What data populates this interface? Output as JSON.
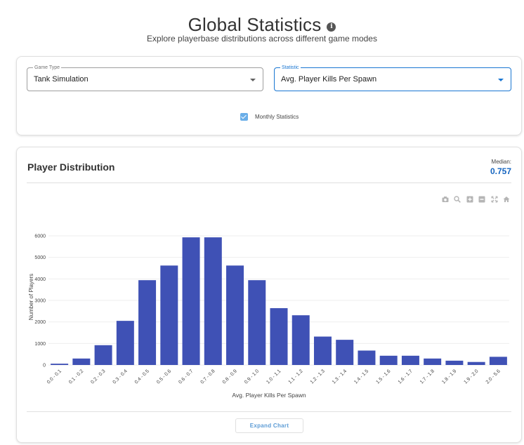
{
  "header": {
    "title": "Global Statistics",
    "info_icon": "info-icon",
    "subtitle": "Explore playerbase distributions across different game modes"
  },
  "filters": {
    "game_type": {
      "label": "Game Type",
      "value": "Tank Simulation"
    },
    "statistic": {
      "label": "Statistic",
      "value": "Avg. Player Kills Per Spawn"
    },
    "monthly": {
      "label": "Monthly Statistics",
      "checked": true
    }
  },
  "distribution": {
    "title": "Player Distribution",
    "median_label": "Median:",
    "median_value": "0.757",
    "modebar_icons": [
      "camera-icon",
      "zoom-icon",
      "zoom-in-icon",
      "zoom-out-icon",
      "autoscale-icon",
      "home-icon"
    ],
    "expand_label": "Expand Chart"
  },
  "colors": {
    "bar": "#3f51b5",
    "accent": "#1976d2",
    "median": "#1565c0"
  },
  "chart_data": {
    "type": "bar",
    "xlabel": "Avg. Player Kills Per Spawn",
    "ylabel": "Number of Players",
    "ylim": [
      0,
      6000
    ],
    "yticks": [
      0,
      1000,
      2000,
      3000,
      4000,
      5000,
      6000
    ],
    "grid": true,
    "categories": [
      "0.0 - 0.1",
      "0.1 - 0.2",
      "0.2 - 0.3",
      "0.3 - 0.4",
      "0.4 - 0.5",
      "0.5 - 0.6",
      "0.6 - 0.7",
      "0.7 - 0.8",
      "0.8 - 0.9",
      "0.9 - 1.0",
      "1.0 - 1.1",
      "1.1 - 1.2",
      "1.2 - 1.3",
      "1.3 - 1.4",
      "1.4 - 1.5",
      "1.5 - 1.6",
      "1.6 - 1.7",
      "1.7 - 1.8",
      "1.8 - 1.9",
      "1.9 - 2.0",
      "2.0 - 5.6"
    ],
    "values": [
      60,
      300,
      920,
      2050,
      3940,
      4620,
      5930,
      5930,
      4620,
      3940,
      2640,
      2310,
      1320,
      1170,
      670,
      430,
      430,
      300,
      200,
      140,
      380
    ]
  }
}
